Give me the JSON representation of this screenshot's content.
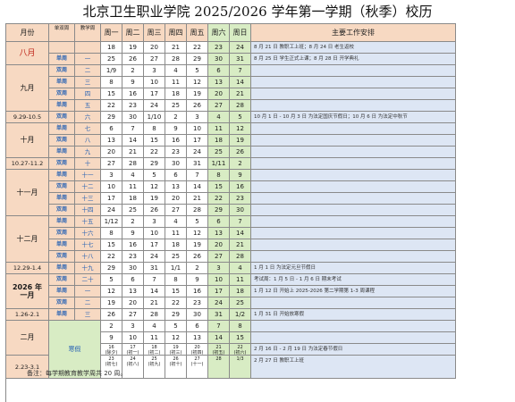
{
  "title": "北京卫生职业学院 2025/2026 学年第一学期（秋季）校历",
  "header": {
    "month": "月份",
    "week_type": "单双周",
    "teach_week": "教学周",
    "days": [
      "周一",
      "周二",
      "周三",
      "周四",
      "周五",
      "周六",
      "周日"
    ],
    "notes": "主要工作安排"
  },
  "months": {
    "aug": "八月",
    "sep": "九月",
    "oct_holiday": "9.29-10.5",
    "oct": "十月",
    "oct_end": "10.27-11.2",
    "nov": "十一月",
    "dec": "十二月",
    "newyear": "12.29-1.4",
    "jan_year": "2026 年",
    "jan": "一月",
    "jan_end": "1.26-2.1",
    "feb": "二月",
    "mar": "2.23-3.1"
  },
  "rows": [
    {
      "wt": "",
      "wn": "",
      "d": [
        "18",
        "19",
        "20",
        "21",
        "22",
        "23",
        "24"
      ],
      "note": "8 月 21 日 教职工上班；8 月 24 日 老生返校"
    },
    {
      "wt": "单周",
      "wn": "一",
      "d": [
        "25",
        "26",
        "27",
        "28",
        "29",
        "30",
        "31"
      ],
      "note": "8 月 25 日 学生正式上课；8 月 28 日 开学典礼"
    },
    {
      "wt": "双周",
      "wn": "二",
      "d": [
        "1/9",
        "2",
        "3",
        "4",
        "5",
        "6",
        "7"
      ],
      "note": ""
    },
    {
      "wt": "单周",
      "wn": "三",
      "d": [
        "8",
        "9",
        "10",
        "11",
        "12",
        "13",
        "14"
      ],
      "note": ""
    },
    {
      "wt": "双周",
      "wn": "四",
      "d": [
        "15",
        "16",
        "17",
        "18",
        "19",
        "20",
        "21"
      ],
      "note": ""
    },
    {
      "wt": "单周",
      "wn": "五",
      "d": [
        "22",
        "23",
        "24",
        "25",
        "26",
        "27",
        "28"
      ],
      "note": ""
    },
    {
      "wt": "双周",
      "wn": "六",
      "d": [
        "29",
        "30",
        "1/10",
        "2",
        "3",
        "4",
        "5"
      ],
      "note": "10 月 1 日 - 10 月 3 日 为法定国庆节假日；10 月 6 日 为法定中秋节"
    },
    {
      "wt": "单周",
      "wn": "七",
      "d": [
        "6",
        "7",
        "8",
        "9",
        "10",
        "11",
        "12"
      ],
      "note": ""
    },
    {
      "wt": "双周",
      "wn": "八",
      "d": [
        "13",
        "14",
        "15",
        "16",
        "17",
        "18",
        "19"
      ],
      "note": ""
    },
    {
      "wt": "单周",
      "wn": "九",
      "d": [
        "20",
        "21",
        "22",
        "23",
        "24",
        "25",
        "26"
      ],
      "note": ""
    },
    {
      "wt": "双周",
      "wn": "十",
      "d": [
        "27",
        "28",
        "29",
        "30",
        "31",
        "1/11",
        "2"
      ],
      "note": ""
    },
    {
      "wt": "单周",
      "wn": "十一",
      "d": [
        "3",
        "4",
        "5",
        "6",
        "7",
        "8",
        "9"
      ],
      "note": ""
    },
    {
      "wt": "双周",
      "wn": "十二",
      "d": [
        "10",
        "11",
        "12",
        "13",
        "14",
        "15",
        "16"
      ],
      "note": ""
    },
    {
      "wt": "单周",
      "wn": "十三",
      "d": [
        "17",
        "18",
        "19",
        "20",
        "21",
        "22",
        "23"
      ],
      "note": ""
    },
    {
      "wt": "双周",
      "wn": "十四",
      "d": [
        "24",
        "25",
        "26",
        "27",
        "28",
        "29",
        "30"
      ],
      "note": ""
    },
    {
      "wt": "单周",
      "wn": "十五",
      "d": [
        "1/12",
        "2",
        "3",
        "4",
        "5",
        "6",
        "7"
      ],
      "note": ""
    },
    {
      "wt": "双周",
      "wn": "十六",
      "d": [
        "8",
        "9",
        "10",
        "11",
        "12",
        "13",
        "14"
      ],
      "note": ""
    },
    {
      "wt": "单周",
      "wn": "十七",
      "d": [
        "15",
        "16",
        "17",
        "18",
        "19",
        "20",
        "21"
      ],
      "note": ""
    },
    {
      "wt": "双周",
      "wn": "十八",
      "d": [
        "22",
        "23",
        "24",
        "25",
        "26",
        "27",
        "28"
      ],
      "note": ""
    },
    {
      "wt": "单周",
      "wn": "十九",
      "d": [
        "29",
        "30",
        "31",
        "1/1",
        "2",
        "3",
        "4"
      ],
      "note": "1 月 1 日 为法定元旦节假日"
    },
    {
      "wt": "双周",
      "wn": "二十",
      "d": [
        "5",
        "6",
        "7",
        "8",
        "9",
        "10",
        "11"
      ],
      "note": "考试周：1 月 5 日 - 1 月 6 日 期末考试"
    },
    {
      "wt": "单周",
      "wn": "一",
      "d": [
        "12",
        "13",
        "14",
        "15",
        "16",
        "17",
        "18"
      ],
      "note": "1 月 12 日 开始上 2025-2026 第二学期第 1-3 周课程"
    },
    {
      "wt": "双周",
      "wn": "二",
      "d": [
        "19",
        "20",
        "21",
        "22",
        "23",
        "24",
        "25"
      ],
      "note": ""
    },
    {
      "wt": "单周",
      "wn": "三",
      "d": [
        "26",
        "27",
        "28",
        "29",
        "30",
        "31",
        "1/2"
      ],
      "note": "1 月 31 日 开始放寒假"
    },
    {
      "wt": "",
      "wn": "",
      "d": [
        "2",
        "3",
        "4",
        "5",
        "6",
        "7",
        "8"
      ],
      "note": ""
    },
    {
      "wt": "",
      "wn": "",
      "d": [
        "9",
        "10",
        "11",
        "12",
        "13",
        "14",
        "15"
      ],
      "note": ""
    },
    {
      "wt": "",
      "wn": "",
      "d": [
        "16",
        "17",
        "18",
        "19",
        "20",
        "21",
        "22"
      ],
      "sub": [
        "(除夕)",
        "(初一)",
        "(初二)",
        "(初三)",
        "(初四)",
        "(初五)",
        "(初六)"
      ],
      "note": "2 月 16 日 - 2 月 19 日 为法定春节假日"
    },
    {
      "wt": "",
      "wn": "",
      "d": [
        "23",
        "24",
        "25",
        "26",
        "27",
        "28",
        "1/3"
      ],
      "sub": [
        "(初七)",
        "(初八)",
        "(初九)",
        "(初十)",
        "(十一)",
        "",
        ""
      ],
      "note": "2 月 27 日 教职工上班"
    }
  ],
  "winter_break": "寒假",
  "footnote": "备注：每学期教育教学周共 20 周。",
  "colors": {
    "header": "#f7d9c2",
    "weekend": "#d8ecc4",
    "notes": "#dde6f4",
    "week_label": "#2a64b4",
    "month_red": "#c0281c"
  }
}
